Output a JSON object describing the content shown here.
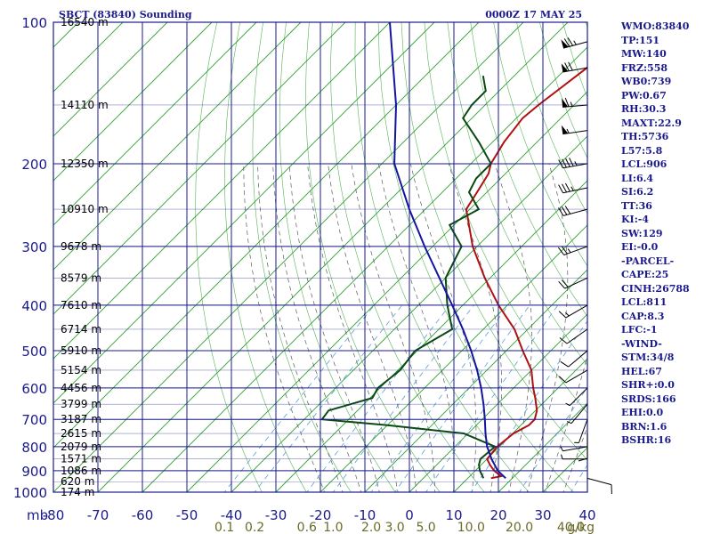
{
  "chart_data": {
    "type": "skew-t log-p sounding",
    "title": "SBCT (83840) Sounding",
    "time": "0000Z 17 MAY 25",
    "pressure_unit": "mb",
    "pressure_ticks": [
      100,
      200,
      300,
      400,
      500,
      600,
      700,
      800,
      900,
      1000
    ],
    "temperature_ticks": [
      -80,
      -70,
      -60,
      -50,
      -40,
      -30,
      -20,
      -10,
      0,
      10,
      20,
      30,
      40
    ],
    "mixing_ratio_labels": [
      {
        "text": "0.1",
        "value": 0.1
      },
      {
        "text": "0.2",
        "value": 0.2
      },
      {
        "text": "0.6",
        "value": 0.6
      },
      {
        "text": "1.0",
        "value": 1.0
      },
      {
        "text": "2.0",
        "value": 2.0
      },
      {
        "text": "3.0",
        "value": 3.0
      },
      {
        "text": "5.0",
        "value": 5.0
      },
      {
        "text": "10.0",
        "value": 10.0
      },
      {
        "text": "20.0",
        "value": 20.0
      },
      {
        "text": "40.0",
        "value": 40.0
      }
    ],
    "mixing_ratio_unit": "g/kg",
    "height_labels": [
      {
        "p": 100,
        "text": "16540 m"
      },
      {
        "p": 150,
        "text": "14110 m"
      },
      {
        "p": 200,
        "text": "12350 m"
      },
      {
        "p": 250,
        "text": "10910 m"
      },
      {
        "p": 300,
        "text": "9678 m"
      },
      {
        "p": 350,
        "text": "8579 m"
      },
      {
        "p": 400,
        "text": "7610 m"
      },
      {
        "p": 450,
        "text": "6714 m"
      },
      {
        "p": 500,
        "text": "5910 m"
      },
      {
        "p": 550,
        "text": "5154 m"
      },
      {
        "p": 600,
        "text": "4456 m"
      },
      {
        "p": 650,
        "text": "3799 m"
      },
      {
        "p": 700,
        "text": "3187 m"
      },
      {
        "p": 750,
        "text": "2615 m"
      },
      {
        "p": 800,
        "text": "2079 m"
      },
      {
        "p": 850,
        "text": "1571 m"
      },
      {
        "p": 900,
        "text": "1086 m"
      },
      {
        "p": 950,
        "text": "620 m"
      },
      {
        "p": 1000,
        "text": "174 m"
      }
    ],
    "series": [
      {
        "name": "temperature",
        "color": "#b01010",
        "p": [
          934,
          925,
          900,
          875,
          850,
          800,
          750,
          720,
          700,
          670,
          650,
          630,
          600,
          550,
          500,
          450,
          400,
          350,
          300,
          250,
          230,
          210,
          200,
          180,
          160,
          150,
          130,
          120,
          110,
          100
        ],
        "t": [
          15.2,
          17.0,
          14.2,
          12.0,
          10.0,
          9.5,
          10.2,
          11.8,
          11.8,
          10.3,
          8.7,
          7.1,
          4.4,
          0.0,
          -6.3,
          -13.0,
          -22.0,
          -31.2,
          -41.0,
          -50.8,
          -52.2,
          -53.8,
          -55.5,
          -57.4,
          -58.6,
          -58.0,
          -56.0,
          -54.9,
          -59.0,
          -57.0
        ]
      },
      {
        "name": "dewpoint",
        "color": "#0a4a12",
        "p": [
          934,
          900,
          875,
          850,
          800,
          750,
          720,
          700,
          670,
          650,
          630,
          600,
          550,
          500,
          450,
          400,
          350,
          300,
          270,
          250,
          230,
          215,
          200,
          180,
          160,
          150,
          140,
          130
        ],
        "t": [
          13.5,
          11.0,
          9.5,
          8.5,
          9.0,
          -1.0,
          -20.0,
          -36.0,
          -36.5,
          -33.0,
          -29.5,
          -30.5,
          -29.5,
          -30.5,
          -27.0,
          -33.5,
          -40.0,
          -43.5,
          -51.0,
          -48.0,
          -54.0,
          -55.5,
          -55.5,
          -63.0,
          -72.0,
          -73.0,
          -73.0,
          -77.0
        ]
      },
      {
        "name": "parcel",
        "color": "#1414a0",
        "p": [
          934,
          900,
          850,
          811,
          800,
          750,
          700,
          650,
          600,
          550,
          500,
          450,
          400,
          350,
          300,
          250,
          200,
          150,
          100
        ],
        "t": [
          18.5,
          15.0,
          11.0,
          8.1,
          7.2,
          3.9,
          0.6,
          -3.1,
          -7.3,
          -12.2,
          -17.9,
          -24.6,
          -32.4,
          -41.4,
          -51.8,
          -63.6,
          -77.2,
          -90.0,
          -110.0
        ]
      }
    ],
    "wind_barbs": [
      {
        "p": 110,
        "dir": 255,
        "spd": 75
      },
      {
        "p": 125,
        "dir": 260,
        "spd": 70
      },
      {
        "p": 150,
        "dir": 265,
        "spd": 65
      },
      {
        "p": 170,
        "dir": 262,
        "spd": 55
      },
      {
        "p": 200,
        "dir": 260,
        "spd": 45
      },
      {
        "p": 225,
        "dir": 258,
        "spd": 35
      },
      {
        "p": 250,
        "dir": 255,
        "spd": 30
      },
      {
        "p": 300,
        "dir": 250,
        "spd": 25
      },
      {
        "p": 350,
        "dir": 245,
        "spd": 20
      },
      {
        "p": 400,
        "dir": 240,
        "spd": 15
      },
      {
        "p": 450,
        "dir": 235,
        "spd": 10
      },
      {
        "p": 500,
        "dir": 230,
        "spd": 10
      },
      {
        "p": 550,
        "dir": 240,
        "spd": 10
      },
      {
        "p": 600,
        "dir": 225,
        "spd": 5
      },
      {
        "p": 650,
        "dir": 220,
        "spd": 5
      },
      {
        "p": 700,
        "dir": 200,
        "spd": 5
      },
      {
        "p": 750,
        "dir": 180,
        "spd": 10
      },
      {
        "p": 800,
        "dir": 260,
        "spd": 5
      },
      {
        "p": 850,
        "dir": 270,
        "spd": 5
      },
      {
        "p": 934,
        "dir": 105,
        "spd": 10
      }
    ],
    "grid": true
  },
  "stats": {
    "lines": [
      "WMO:83840",
      "TP:151",
      "MW:140",
      "FRZ:558",
      "WB0:739",
      "PW:0.67",
      "RH:30.3",
      "MAXT:22.9",
      "TH:5736",
      "L57:5.8",
      "LCL:906",
      "LI:6.4",
      "SI:6.2",
      "TT:36",
      "KI:-4",
      "SW:129",
      "EI:-0.0",
      "-PARCEL-",
      "CAPE:25",
      "CINH:26788",
      "LCL:811",
      "CAP:8.3",
      "LFC:-1",
      "-WIND-",
      "STM:34/8",
      "HEL:67",
      "SHR+:0.0",
      "SRDS:166",
      "EHI:0.0",
      "BRN:1.6",
      "BSHR:16"
    ]
  },
  "colors": {
    "frame": "#1a1a8c",
    "dry_adiabat": "#2ca02c",
    "moist_adiabat": "#3f3f3f",
    "mixing_ratio": "#5aa0d8",
    "temperature": "#b01010",
    "dewpoint": "#0a4a12",
    "parcel": "#1414a0",
    "mixing_label": "#6b6b2a"
  }
}
